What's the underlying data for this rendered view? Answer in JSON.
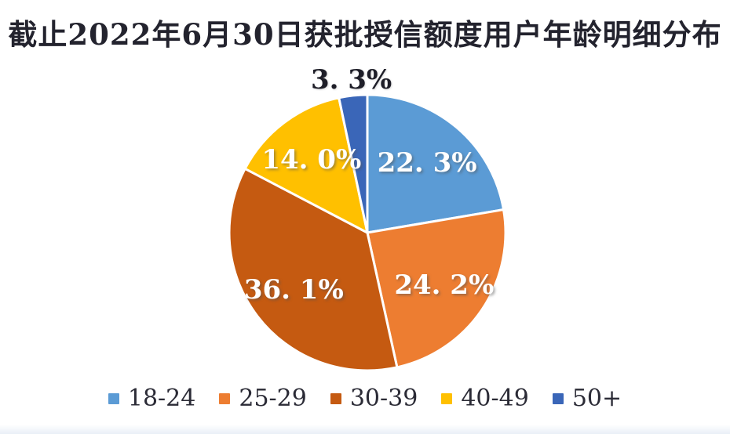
{
  "title": "截止2022年6月30日获批授信额度用户年龄明细分布",
  "chart_data": {
    "type": "pie",
    "title": "截止2022年6月30日获批授信额度用户年龄明细分布",
    "categories": [
      "18-24",
      "25-29",
      "30-39",
      "40-49",
      "50+"
    ],
    "values": [
      22.3,
      24.2,
      36.1,
      14.0,
      3.3
    ],
    "display_labels": [
      "22. 3%",
      "24. 2%",
      "36. 1%",
      "14. 0%",
      "3. 3%"
    ],
    "colors": [
      "#5B9BD5",
      "#ED7D31",
      "#C55A11",
      "#FFC000",
      "#3A66B8"
    ],
    "label_color_inside": "#FFFFFF",
    "label_color_outside": "#1E1E28",
    "start_angle_deg": 0,
    "direction": "clockwise",
    "legend_position": "bottom",
    "small_slice_outside_threshold_pct": 5
  }
}
